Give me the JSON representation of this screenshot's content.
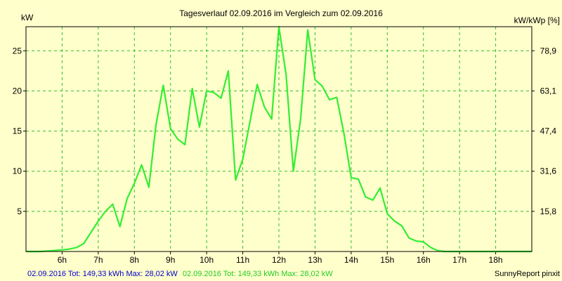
{
  "chart_data": {
    "type": "line",
    "title": "Tagesverlauf 02.09.2016 im Vergleich zum 02.09.2016",
    "ylabel_left": "kW",
    "ylabel_right": "kW/kWp [%]",
    "xlim": [
      5.0,
      19.0
    ],
    "ylim": [
      0,
      28
    ],
    "grid": true,
    "x_ticks": [
      {
        "value": 6,
        "label": "6h"
      },
      {
        "value": 7,
        "label": "7h"
      },
      {
        "value": 8,
        "label": "8h"
      },
      {
        "value": 9,
        "label": "9h"
      },
      {
        "value": 10,
        "label": "10h"
      },
      {
        "value": 11,
        "label": "11h"
      },
      {
        "value": 12,
        "label": "12h"
      },
      {
        "value": 13,
        "label": "13h"
      },
      {
        "value": 14,
        "label": "14h"
      },
      {
        "value": 15,
        "label": "15h"
      },
      {
        "value": 16,
        "label": "16h"
      },
      {
        "value": 17,
        "label": "17h"
      },
      {
        "value": 18,
        "label": "18h"
      }
    ],
    "y_ticks_left": [
      {
        "value": 5,
        "label": "5"
      },
      {
        "value": 10,
        "label": "10"
      },
      {
        "value": 15,
        "label": "15"
      },
      {
        "value": 20,
        "label": "20"
      },
      {
        "value": 25,
        "label": "25"
      }
    ],
    "y_ticks_right": [
      {
        "value": 5,
        "label": "15,8"
      },
      {
        "value": 10,
        "label": "31,6"
      },
      {
        "value": 15,
        "label": "47,4"
      },
      {
        "value": 20,
        "label": "63,1"
      },
      {
        "value": 25,
        "label": "78,9"
      }
    ],
    "series": [
      {
        "color": "#33ee33",
        "x": [
          5.0,
          5.4,
          5.7,
          6.0,
          6.2,
          6.4,
          6.6,
          6.8,
          7.0,
          7.2,
          7.4,
          7.6,
          7.8,
          8.0,
          8.2,
          8.4,
          8.6,
          8.8,
          9.0,
          9.2,
          9.4,
          9.6,
          9.8,
          10.0,
          10.2,
          10.4,
          10.6,
          10.8,
          11.0,
          11.2,
          11.4,
          11.6,
          11.8,
          12.0,
          12.2,
          12.4,
          12.6,
          12.8,
          13.0,
          13.2,
          13.4,
          13.6,
          13.8,
          14.0,
          14.2,
          14.4,
          14.6,
          14.8,
          15.0,
          15.2,
          15.4,
          15.6,
          15.8,
          16.0,
          16.2,
          16.4,
          16.6,
          16.8,
          17.0,
          17.2,
          17.4,
          17.6,
          17.8,
          18.0,
          18.2,
          18.4,
          18.6,
          19.0
        ],
        "values": [
          0,
          0,
          0.1,
          0.2,
          0.3,
          0.5,
          1.0,
          2.4,
          3.8,
          5.0,
          5.9,
          3.1,
          6.6,
          8.5,
          10.8,
          8.0,
          15.8,
          20.7,
          15.3,
          14.0,
          13.3,
          20.3,
          15.5,
          20.0,
          19.8,
          19.1,
          22.5,
          8.9,
          11.5,
          16.2,
          20.8,
          18.0,
          16.5,
          28.0,
          22.0,
          10.0,
          16.5,
          27.6,
          21.4,
          20.6,
          18.9,
          19.2,
          14.7,
          9.2,
          9.0,
          6.8,
          6.4,
          7.9,
          4.7,
          3.8,
          3.2,
          1.7,
          1.3,
          1.2,
          0.5,
          0.1,
          0,
          0,
          0,
          0,
          0,
          0,
          0,
          0,
          0,
          0,
          0,
          0
        ]
      }
    ]
  },
  "footer": {
    "part1": "02.09.2016 Tot: 149,33 kWh Max: 28,02 kW",
    "part1_color": "#0000cc",
    "part2": "02.09.2016 Tot: 149,33 kWh Max: 28,02 kW",
    "part2_color": "#22cc22",
    "credit": "SunnyReport pinxit"
  }
}
